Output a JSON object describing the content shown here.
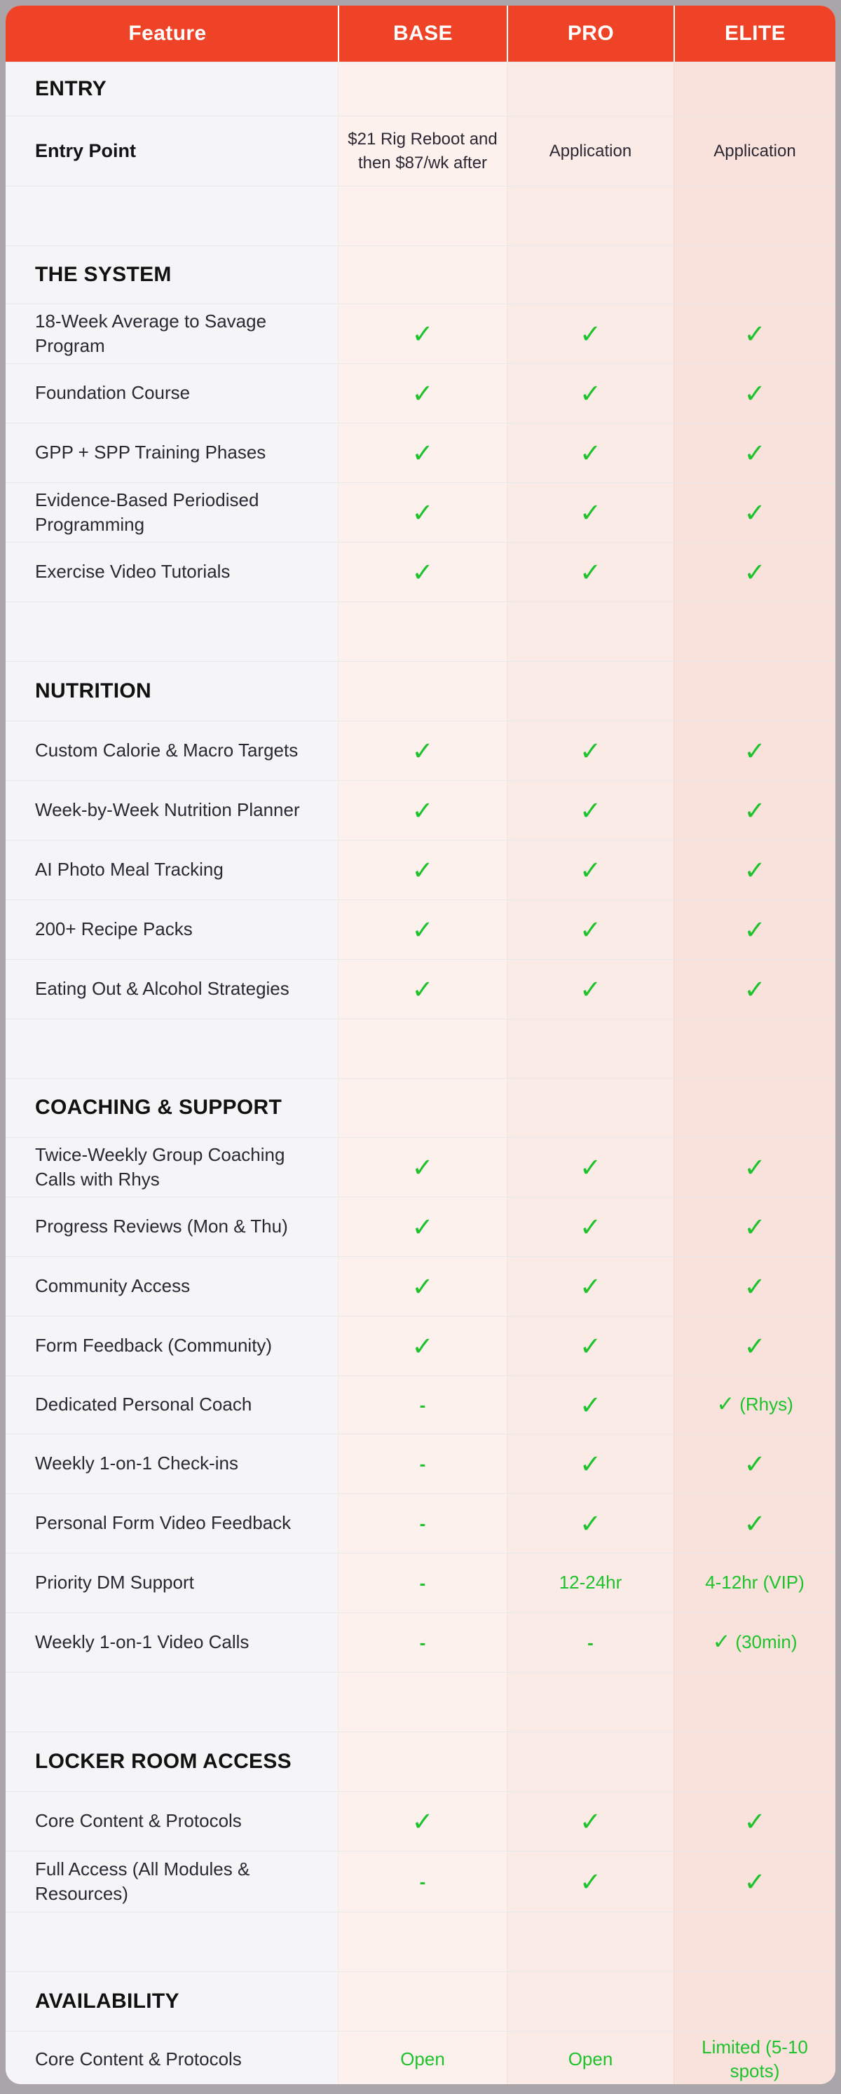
{
  "header": {
    "columns": [
      "Feature",
      "BASE",
      "PRO",
      "ELITE"
    ]
  },
  "icons": {
    "check": "✓",
    "dash": "-"
  },
  "colors": {
    "header_bg": "#EE4326",
    "header_text": "#FFFFFF",
    "feature_column_bg": "#F5F4F6",
    "base_column_bg": "#FDF1EE",
    "pro_column_bg": "#FBEBE7",
    "elite_column_bg": "#F9E2DC",
    "check_green": "#1EC22B",
    "dark_text": "#2B2733",
    "outer_background": "#A9A5A9"
  },
  "rows": [
    {
      "type": "section",
      "label": "ENTRY",
      "h": 77
    },
    {
      "type": "feature",
      "label": "Entry Point",
      "bold": true,
      "h": 100,
      "values": [
        {
          "kind": "text",
          "text": "$21 Rig Reboot and then $87/wk after"
        },
        {
          "kind": "text",
          "text": "Application"
        },
        {
          "kind": "text",
          "text": "Application"
        }
      ]
    },
    {
      "type": "spacer",
      "h": 85
    },
    {
      "type": "section",
      "label": "THE SYSTEM",
      "h": 83
    },
    {
      "type": "feature",
      "label": "18-Week Average to Savage Program",
      "values": [
        {
          "kind": "check"
        },
        {
          "kind": "check"
        },
        {
          "kind": "check"
        }
      ]
    },
    {
      "type": "feature",
      "label": "Foundation Course",
      "values": [
        {
          "kind": "check"
        },
        {
          "kind": "check"
        },
        {
          "kind": "check"
        }
      ]
    },
    {
      "type": "feature",
      "label": "GPP + SPP Training Phases",
      "values": [
        {
          "kind": "check"
        },
        {
          "kind": "check"
        },
        {
          "kind": "check"
        }
      ]
    },
    {
      "type": "feature",
      "label": "Evidence-Based Periodised Programming",
      "values": [
        {
          "kind": "check"
        },
        {
          "kind": "check"
        },
        {
          "kind": "check"
        }
      ]
    },
    {
      "type": "feature",
      "label": "Exercise Video Tutorials",
      "values": [
        {
          "kind": "check"
        },
        {
          "kind": "check"
        },
        {
          "kind": "check"
        }
      ]
    },
    {
      "type": "spacer",
      "h": 85
    },
    {
      "type": "section",
      "label": "NUTRITION",
      "h": 85
    },
    {
      "type": "feature",
      "label": "Custom Calorie & Macro Targets",
      "values": [
        {
          "kind": "check"
        },
        {
          "kind": "check"
        },
        {
          "kind": "check"
        }
      ]
    },
    {
      "type": "feature",
      "label": "Week-by-Week Nutrition Planner",
      "values": [
        {
          "kind": "check"
        },
        {
          "kind": "check"
        },
        {
          "kind": "check"
        }
      ]
    },
    {
      "type": "feature",
      "label": "AI Photo Meal Tracking",
      "values": [
        {
          "kind": "check"
        },
        {
          "kind": "check"
        },
        {
          "kind": "check"
        }
      ]
    },
    {
      "type": "feature",
      "label": "200+ Recipe Packs",
      "values": [
        {
          "kind": "check"
        },
        {
          "kind": "check"
        },
        {
          "kind": "check"
        }
      ]
    },
    {
      "type": "feature",
      "label": "Eating Out & Alcohol Strategies",
      "values": [
        {
          "kind": "check"
        },
        {
          "kind": "check"
        },
        {
          "kind": "check"
        }
      ]
    },
    {
      "type": "spacer",
      "h": 85
    },
    {
      "type": "section",
      "label": "COACHING & SUPPORT",
      "h": 84
    },
    {
      "type": "feature",
      "label": "Twice-Weekly Group Coaching Calls with Rhys",
      "values": [
        {
          "kind": "check"
        },
        {
          "kind": "check"
        },
        {
          "kind": "check"
        }
      ]
    },
    {
      "type": "feature",
      "label": "Progress Reviews (Mon & Thu)",
      "values": [
        {
          "kind": "check"
        },
        {
          "kind": "check"
        },
        {
          "kind": "check"
        }
      ]
    },
    {
      "type": "feature",
      "label": "Community Access",
      "values": [
        {
          "kind": "check"
        },
        {
          "kind": "check"
        },
        {
          "kind": "check"
        }
      ]
    },
    {
      "type": "feature",
      "label": "Form Feedback (Community)",
      "values": [
        {
          "kind": "check"
        },
        {
          "kind": "check"
        },
        {
          "kind": "check"
        }
      ]
    },
    {
      "type": "feature",
      "label": "Dedicated Personal Coach",
      "h": 83,
      "values": [
        {
          "kind": "dash"
        },
        {
          "kind": "check"
        },
        {
          "kind": "check-text",
          "text": "(Rhys)"
        }
      ]
    },
    {
      "type": "feature",
      "label": "Weekly 1-on-1 Check-ins",
      "values": [
        {
          "kind": "dash"
        },
        {
          "kind": "check"
        },
        {
          "kind": "check"
        }
      ]
    },
    {
      "type": "feature",
      "label": "Personal Form Video Feedback",
      "values": [
        {
          "kind": "dash"
        },
        {
          "kind": "check"
        },
        {
          "kind": "check"
        }
      ]
    },
    {
      "type": "feature",
      "label": "Priority DM Support",
      "values": [
        {
          "kind": "dash"
        },
        {
          "kind": "green",
          "text": "12-24hr"
        },
        {
          "kind": "green",
          "text": "4-12hr (VIP)"
        }
      ]
    },
    {
      "type": "feature",
      "label": "Weekly 1-on-1 Video Calls",
      "values": [
        {
          "kind": "dash"
        },
        {
          "kind": "dash"
        },
        {
          "kind": "check-text",
          "text": "(30min)"
        }
      ]
    },
    {
      "type": "spacer",
      "h": 85
    },
    {
      "type": "section",
      "label": "LOCKER ROOM ACCESS",
      "h": 85
    },
    {
      "type": "feature",
      "label": "Core Content & Protocols",
      "values": [
        {
          "kind": "check"
        },
        {
          "kind": "check"
        },
        {
          "kind": "check"
        }
      ]
    },
    {
      "type": "feature",
      "label": "Full Access (All Modules & Resources)",
      "h": 87,
      "values": [
        {
          "kind": "dash"
        },
        {
          "kind": "check"
        },
        {
          "kind": "check"
        }
      ]
    },
    {
      "type": "spacer",
      "h": 85
    },
    {
      "type": "section",
      "label": "AVAILABILITY",
      "h": 85
    },
    {
      "type": "feature",
      "label": "Core Content & Protocols",
      "h": 76,
      "values": [
        {
          "kind": "green",
          "text": "Open"
        },
        {
          "kind": "green",
          "text": "Open"
        },
        {
          "kind": "green",
          "text": "Limited (5-10 spots)"
        }
      ]
    }
  ]
}
